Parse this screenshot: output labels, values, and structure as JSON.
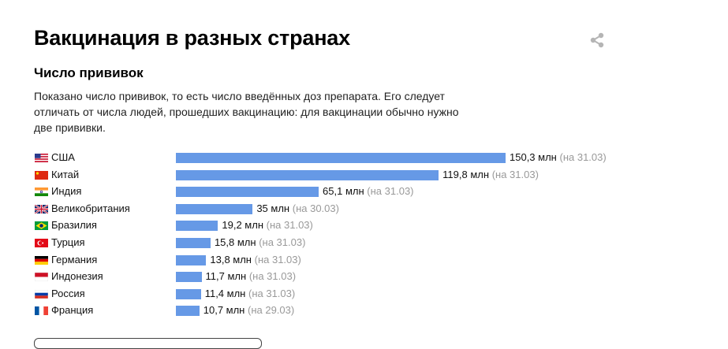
{
  "header": {
    "title": "Вакцинация в разных странах",
    "share_icon": "share-icon"
  },
  "section": {
    "subtitle": "Число прививок",
    "description": "Показано число прививок, то есть число введённых доз препарата. Его следует отличать от числа людей, прошедших вакцинацию: для вакцинации обычно нужно две прививки."
  },
  "colors": {
    "bar": "#6699e6",
    "date_text": "#999999"
  },
  "chart_data": {
    "type": "bar",
    "orientation": "horizontal",
    "unit": "млн",
    "categories": [
      "США",
      "Китай",
      "Индия",
      "Великобритания",
      "Бразилия",
      "Турция",
      "Германия",
      "Индонезия",
      "Россия",
      "Франция"
    ],
    "values": [
      150.3,
      119.8,
      65.1,
      35,
      19.2,
      15.8,
      13.8,
      11.7,
      11.4,
      10.7
    ],
    "value_labels": [
      "150,3 млн",
      "119,8 млн",
      "65,1 млн",
      "35 млн",
      "19,2 млн",
      "15,8 млн",
      "13,8 млн",
      "11,7 млн",
      "11,4 млн",
      "10,7 млн"
    ],
    "date_labels": [
      "(на 31.03)",
      "(на 31.03)",
      "(на 31.03)",
      "(на 30.03)",
      "(на 31.03)",
      "(на 31.03)",
      "(на 31.03)",
      "(на 31.03)",
      "(на 31.03)",
      "(на 29.03)"
    ],
    "flags": [
      "flag-usa-icon",
      "flag-china-icon",
      "flag-india-icon",
      "flag-uk-icon",
      "flag-brazil-icon",
      "flag-turkey-icon",
      "flag-germany-icon",
      "flag-indonesia-icon",
      "flag-russia-icon",
      "flag-france-icon"
    ],
    "xlim": [
      0,
      150.3
    ],
    "grid": false,
    "legend": "none"
  }
}
